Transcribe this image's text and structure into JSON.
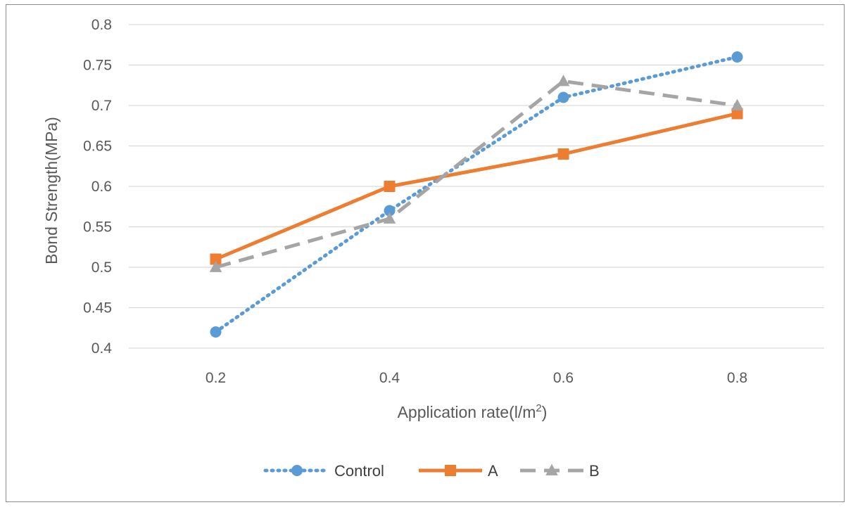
{
  "chart_data": {
    "type": "line",
    "title": "",
    "xlabel": "Application rate(l/m",
    "xlabel_sup": "2",
    "xlabel_end": ")",
    "ylabel": "Bond Strength(MPa)",
    "x": [
      0.2,
      0.4,
      0.6,
      0.8
    ],
    "x_tick_labels": [
      "0.2",
      "0.4",
      "0.6",
      "0.8"
    ],
    "ylim": [
      0.4,
      0.8
    ],
    "y_ticks": [
      0.4,
      0.45,
      0.5,
      0.55,
      0.6,
      0.65,
      0.7,
      0.75,
      0.8
    ],
    "y_tick_labels": [
      "0.4",
      "0.45",
      "0.5",
      "0.55",
      "0.6",
      "0.65",
      "0.7",
      "0.75",
      "0.8"
    ],
    "grid": true,
    "legend_position": "bottom",
    "series": [
      {
        "name": "Control",
        "values": [
          0.42,
          0.57,
          0.71,
          0.76
        ],
        "color": "#5b9bd5",
        "marker": "circle",
        "line_style": "dotted"
      },
      {
        "name": "A",
        "values": [
          0.51,
          0.6,
          0.64,
          0.69
        ],
        "color": "#ed7d31",
        "marker": "square",
        "line_style": "solid"
      },
      {
        "name": "B",
        "values": [
          0.5,
          0.56,
          0.73,
          0.7
        ],
        "color": "#a5a5a5",
        "marker": "triangle",
        "line_style": "dashed"
      }
    ]
  }
}
